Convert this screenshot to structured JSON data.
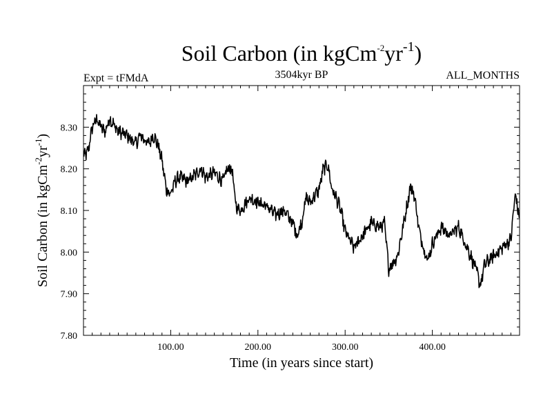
{
  "chart_data": {
    "type": "line",
    "title": {
      "base": "Soil Carbon (in kgCm",
      "sup1": "-2",
      "mid": "yr",
      "sup2": "-1",
      "end": ")"
    },
    "subtitle_left": "Expt = tFMdA",
    "subtitle_center": "3504kyr BP",
    "subtitle_right": "ALL_MONTHS",
    "xlabel": "Time (in years since start)",
    "ylabel": {
      "base": "Soil Carbon (in kgCm",
      "sup1": "-2",
      "mid": "yr",
      "sup2": "-1",
      "end": ")"
    },
    "xlim": [
      0,
      500
    ],
    "ylim": [
      7.8,
      8.4
    ],
    "xticks": [
      100,
      200,
      300,
      400
    ],
    "xtick_labels": [
      "100.00",
      "200.00",
      "300.00",
      "400.00"
    ],
    "yticks": [
      7.8,
      7.9,
      8.0,
      8.1,
      8.2,
      8.3
    ],
    "ytick_labels": [
      "7.80",
      "7.90",
      "8.00",
      "8.10",
      "8.20",
      "8.30"
    ],
    "grid": false,
    "series": [
      {
        "name": "Soil Carbon",
        "color": "#000000",
        "x": [
          0,
          5,
          10,
          15,
          20,
          25,
          30,
          40,
          50,
          55,
          60,
          65,
          70,
          75,
          80,
          85,
          90,
          95,
          100,
          105,
          110,
          120,
          130,
          135,
          140,
          150,
          160,
          165,
          170,
          175,
          180,
          190,
          200,
          210,
          220,
          230,
          240,
          245,
          250,
          255,
          260,
          270,
          275,
          280,
          285,
          290,
          295,
          300,
          305,
          310,
          320,
          330,
          340,
          345,
          350,
          360,
          370,
          375,
          380,
          385,
          390,
          395,
          400,
          405,
          410,
          420,
          430,
          440,
          450,
          455,
          460,
          470,
          480,
          490,
          495,
          500
        ],
        "values": [
          8.23,
          8.24,
          8.3,
          8.32,
          8.3,
          8.29,
          8.32,
          8.29,
          8.28,
          8.27,
          8.26,
          8.28,
          8.27,
          8.26,
          8.28,
          8.26,
          8.22,
          8.15,
          8.14,
          8.17,
          8.18,
          8.17,
          8.19,
          8.2,
          8.18,
          8.19,
          8.17,
          8.2,
          8.2,
          8.11,
          8.1,
          8.13,
          8.12,
          8.11,
          8.09,
          8.1,
          8.07,
          8.04,
          8.07,
          8.13,
          8.12,
          8.15,
          8.2,
          8.21,
          8.15,
          8.13,
          8.1,
          8.05,
          8.03,
          8.01,
          8.04,
          8.07,
          8.06,
          8.07,
          7.96,
          7.99,
          8.1,
          8.16,
          8.13,
          8.05,
          8.01,
          7.98,
          8.02,
          8.04,
          8.06,
          8.04,
          8.06,
          8.01,
          7.96,
          7.92,
          7.97,
          7.99,
          8.01,
          8.03,
          8.14,
          8.08
        ]
      }
    ]
  }
}
